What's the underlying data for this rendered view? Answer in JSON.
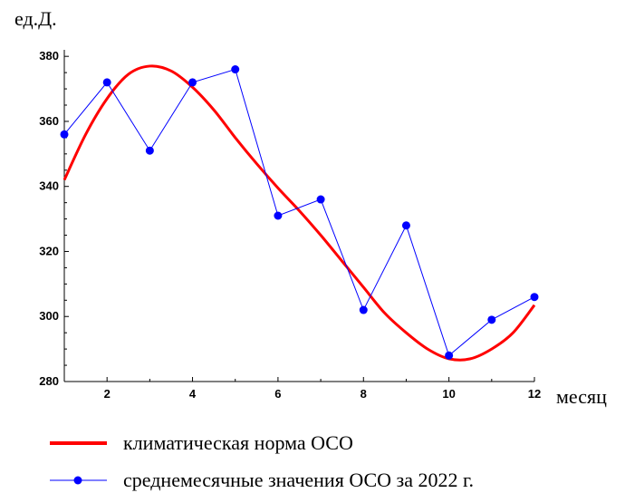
{
  "chart_data": {
    "type": "line",
    "xlabel": "месяц",
    "ylabel": "ед.Д.",
    "xlim": [
      1,
      12
    ],
    "ylim": [
      280,
      382
    ],
    "x_ticks": [
      2,
      4,
      6,
      8,
      10,
      12
    ],
    "y_ticks": [
      280,
      300,
      320,
      340,
      360,
      380
    ],
    "grid": false,
    "legend_position": "bottom",
    "series": [
      {
        "name": "климатическая норма ОСО",
        "style": "smooth-line",
        "color": "#ff0000",
        "x": [
          1,
          1.5,
          2,
          2.5,
          3,
          3.5,
          4,
          4.5,
          5,
          5.5,
          6,
          6.5,
          7,
          7.5,
          8,
          8.5,
          9,
          9.5,
          10,
          10.5,
          11,
          11.5,
          12
        ],
        "values": [
          342,
          356,
          367,
          374.5,
          377,
          375.5,
          370.5,
          363.5,
          355,
          347,
          339.5,
          332.5,
          325,
          317,
          309,
          301,
          295,
          290,
          287,
          287,
          290,
          295,
          303.5
        ]
      },
      {
        "name": "среднемесячные значения ОСО за 2022 г.",
        "style": "line-markers",
        "color": "#0000ff",
        "x": [
          1,
          2,
          3,
          4,
          5,
          6,
          7,
          8,
          9,
          10,
          11,
          12
        ],
        "values": [
          356,
          372,
          351,
          372,
          376,
          331,
          336,
          302,
          328,
          288,
          299,
          306
        ]
      }
    ]
  }
}
